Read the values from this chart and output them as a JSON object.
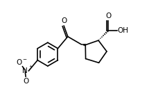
{
  "line_color": "#000000",
  "bg_color": "#ffffff",
  "lw": 1.2,
  "figsize": [
    2.41,
    1.54
  ],
  "dpi": 100,
  "xlim": [
    0.0,
    10.0
  ],
  "ylim": [
    0.0,
    6.5
  ]
}
